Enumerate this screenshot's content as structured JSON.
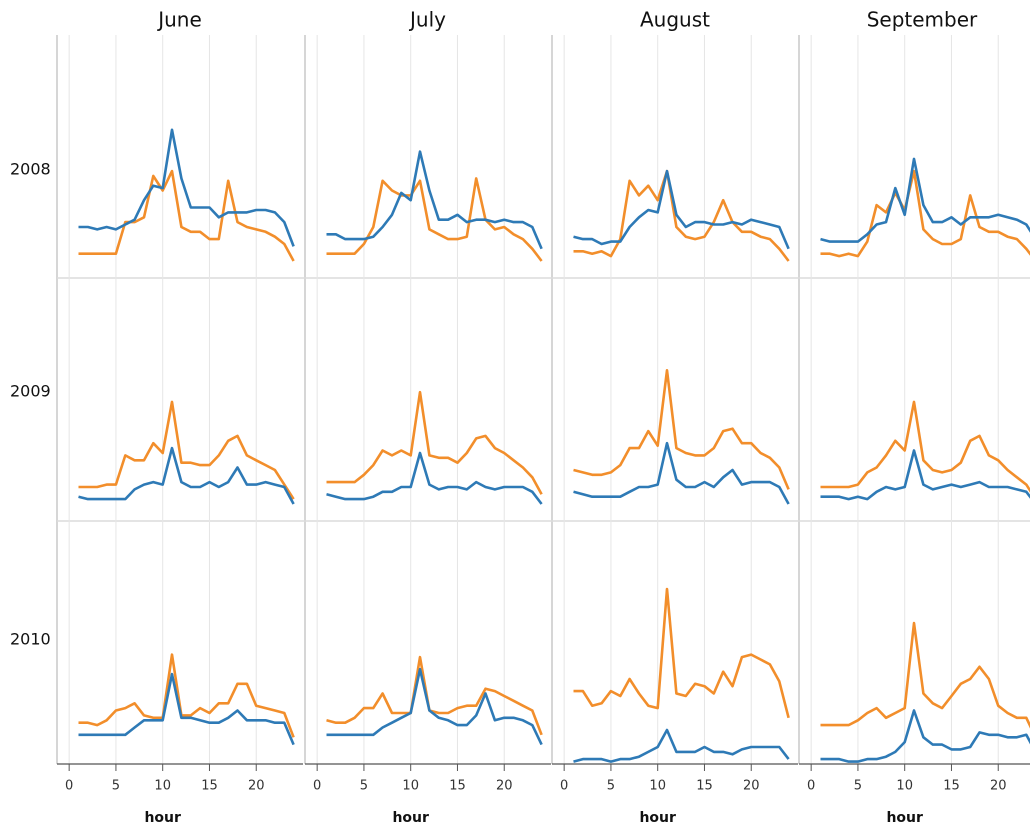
{
  "chart_data": {
    "type": "line",
    "columns": [
      "June",
      "July",
      "August",
      "September"
    ],
    "rows": [
      "2008",
      "2009",
      "2010"
    ],
    "xlabel": "hour",
    "x": [
      1,
      2,
      3,
      4,
      5,
      6,
      7,
      8,
      9,
      10,
      11,
      12,
      13,
      14,
      15,
      16,
      17,
      18,
      19,
      20,
      21,
      22,
      23,
      24
    ],
    "xlim": [
      -1.3,
      25
    ],
    "xticks": [
      0,
      5,
      10,
      15,
      20
    ],
    "ylim": [
      0,
      100
    ],
    "grid": true,
    "panels": [
      [
        {
          "series": [
            {
              "color": "#f28e2b",
              "values": [
                10,
                10,
                10,
                10,
                10,
                23,
                23,
                25,
                42,
                36,
                44,
                21,
                19,
                19,
                16,
                16,
                40,
                23,
                21,
                20,
                19,
                17,
                14,
                7
              ]
            },
            {
              "color": "#2e7ab6",
              "values": [
                21,
                21,
                20,
                21,
                20,
                22,
                24,
                32,
                38,
                37,
                61,
                41,
                29,
                29,
                29,
                25,
                27,
                27,
                27,
                28,
                28,
                27,
                23,
                13
              ]
            }
          ]
        },
        {
          "series": [
            {
              "color": "#f28e2b",
              "values": [
                10,
                10,
                10,
                10,
                14,
                21,
                40,
                36,
                34,
                34,
                40,
                20,
                18,
                16,
                16,
                17,
                41,
                24,
                20,
                21,
                18,
                16,
                12,
                7
              ]
            },
            {
              "color": "#2e7ab6",
              "values": [
                18,
                18,
                16,
                16,
                16,
                17,
                21,
                26,
                35,
                32,
                52,
                36,
                24,
                24,
                26,
                23,
                24,
                24,
                23,
                24,
                23,
                23,
                21,
                12
              ]
            }
          ]
        },
        {
          "series": [
            {
              "color": "#f28e2b",
              "values": [
                11,
                11,
                10,
                11,
                9,
                16,
                40,
                34,
                38,
                32,
                44,
                21,
                17,
                16,
                17,
                23,
                32,
                23,
                19,
                19,
                17,
                16,
                12,
                7
              ]
            },
            {
              "color": "#2e7ab6",
              "values": [
                17,
                16,
                16,
                14,
                15,
                15,
                21,
                25,
                28,
                27,
                44,
                26,
                21,
                23,
                23,
                22,
                22,
                23,
                22,
                24,
                23,
                22,
                21,
                12
              ]
            }
          ]
        },
        {
          "series": [
            {
              "color": "#f28e2b",
              "values": [
                10,
                10,
                9,
                10,
                9,
                15,
                30,
                27,
                35,
                28,
                44,
                20,
                16,
                14,
                14,
                16,
                34,
                21,
                19,
                19,
                17,
                16,
                12,
                7
              ]
            },
            {
              "color": "#2e7ab6",
              "values": [
                16,
                15,
                15,
                15,
                15,
                18,
                22,
                23,
                37,
                26,
                49,
                30,
                23,
                23,
                25,
                22,
                25,
                25,
                25,
                26,
                25,
                24,
                22,
                16
              ]
            }
          ]
        }
      ],
      [
        {
          "series": [
            {
              "color": "#f28e2b",
              "values": [
                14,
                14,
                14,
                15,
                15,
                27,
                25,
                25,
                32,
                28,
                49,
                24,
                24,
                23,
                23,
                27,
                33,
                35,
                27,
                25,
                23,
                21,
                15,
                9
              ]
            },
            {
              "color": "#2e7ab6",
              "values": [
                10,
                9,
                9,
                9,
                9,
                9,
                13,
                15,
                16,
                15,
                30,
                16,
                14,
                14,
                16,
                14,
                16,
                22,
                15,
                15,
                16,
                15,
                14,
                7
              ]
            }
          ]
        },
        {
          "series": [
            {
              "color": "#f28e2b",
              "values": [
                16,
                16,
                16,
                16,
                19,
                23,
                29,
                27,
                29,
                27,
                53,
                27,
                26,
                26,
                24,
                28,
                34,
                35,
                30,
                28,
                25,
                22,
                18,
                11
              ]
            },
            {
              "color": "#2e7ab6",
              "values": [
                11,
                10,
                9,
                9,
                9,
                10,
                12,
                12,
                14,
                14,
                28,
                15,
                13,
                14,
                14,
                13,
                16,
                14,
                13,
                14,
                14,
                14,
                12,
                7
              ]
            }
          ]
        },
        {
          "series": [
            {
              "color": "#f28e2b",
              "values": [
                21,
                20,
                19,
                19,
                20,
                23,
                30,
                30,
                37,
                31,
                62,
                30,
                28,
                27,
                27,
                30,
                37,
                38,
                32,
                32,
                28,
                26,
                22,
                13
              ]
            },
            {
              "color": "#2e7ab6",
              "values": [
                12,
                11,
                10,
                10,
                10,
                10,
                12,
                14,
                14,
                15,
                32,
                17,
                14,
                14,
                16,
                14,
                18,
                21,
                15,
                16,
                16,
                16,
                14,
                7
              ]
            }
          ]
        },
        {
          "series": [
            {
              "color": "#f28e2b",
              "values": [
                14,
                14,
                14,
                14,
                15,
                20,
                22,
                27,
                33,
                29,
                49,
                25,
                21,
                20,
                21,
                24,
                33,
                35,
                27,
                25,
                21,
                18,
                15,
                9
              ]
            },
            {
              "color": "#2e7ab6",
              "values": [
                10,
                10,
                10,
                9,
                10,
                9,
                12,
                14,
                13,
                14,
                29,
                15,
                13,
                14,
                15,
                14,
                15,
                16,
                14,
                14,
                14,
                13,
                12,
                7
              ]
            }
          ]
        }
      ],
      [
        {
          "series": [
            {
              "color": "#f28e2b",
              "values": [
                17,
                17,
                16,
                18,
                22,
                23,
                25,
                20,
                19,
                19,
                45,
                20,
                20,
                23,
                21,
                25,
                25,
                33,
                33,
                24,
                23,
                22,
                21,
                11
              ]
            },
            {
              "color": "#2e7ab6",
              "values": [
                12,
                12,
                12,
                12,
                12,
                12,
                15,
                18,
                18,
                18,
                37,
                19,
                19,
                18,
                17,
                17,
                19,
                22,
                18,
                18,
                18,
                17,
                17,
                8
              ]
            }
          ]
        },
        {
          "series": [
            {
              "color": "#f28e2b",
              "values": [
                18,
                17,
                17,
                19,
                23,
                23,
                29,
                21,
                21,
                21,
                44,
                22,
                21,
                21,
                23,
                24,
                24,
                31,
                30,
                28,
                26,
                24,
                22,
                12
              ]
            },
            {
              "color": "#2e7ab6",
              "values": [
                12,
                12,
                12,
                12,
                12,
                12,
                15,
                17,
                19,
                21,
                39,
                22,
                19,
                18,
                16,
                16,
                20,
                29,
                18,
                19,
                19,
                18,
                16,
                8
              ]
            }
          ]
        },
        {
          "series": [
            {
              "color": "#f28e2b",
              "values": [
                30,
                30,
                24,
                25,
                30,
                28,
                35,
                29,
                24,
                23,
                72,
                29,
                28,
                33,
                32,
                29,
                38,
                32,
                44,
                45,
                43,
                41,
                34,
                19
              ]
            },
            {
              "color": "#2e7ab6",
              "values": [
                1,
                2,
                2,
                2,
                1,
                2,
                2,
                3,
                5,
                7,
                14,
                5,
                5,
                5,
                7,
                5,
                5,
                4,
                6,
                7,
                7,
                7,
                7,
                2
              ]
            }
          ]
        },
        {
          "series": [
            {
              "color": "#f28e2b",
              "values": [
                16,
                16,
                16,
                16,
                18,
                21,
                23,
                19,
                21,
                23,
                58,
                29,
                25,
                23,
                28,
                33,
                35,
                40,
                35,
                24,
                21,
                19,
                19,
                11
              ]
            },
            {
              "color": "#2e7ab6",
              "values": [
                2,
                2,
                2,
                1,
                1,
                2,
                2,
                3,
                5,
                9,
                22,
                11,
                8,
                8,
                6,
                6,
                7,
                13,
                12,
                12,
                11,
                11,
                12,
                5
              ]
            }
          ]
        }
      ]
    ]
  }
}
